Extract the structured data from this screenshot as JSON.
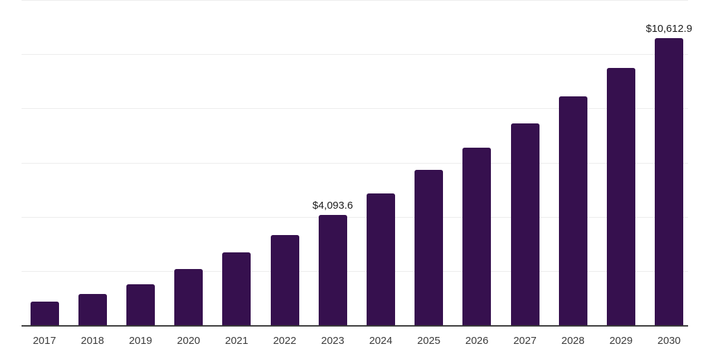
{
  "chart_data": {
    "type": "bar",
    "title": "",
    "xlabel": "",
    "ylabel": "",
    "categories": [
      "2017",
      "2018",
      "2019",
      "2020",
      "2021",
      "2022",
      "2023",
      "2024",
      "2025",
      "2026",
      "2027",
      "2028",
      "2029",
      "2030"
    ],
    "values": [
      890,
      1190,
      1540,
      2100,
      2700,
      3350,
      4093.6,
      4890,
      5760,
      6570,
      7470,
      8480,
      9510,
      10612.9
    ],
    "data_labels": {
      "2023": "$4,093.6",
      "2030": "$10,612.9"
    },
    "ylim": [
      0,
      12000
    ],
    "gridline_step": 2000,
    "grid": true,
    "legend": false,
    "bar_color": "#36104E",
    "gridline_color": "#ececec",
    "axis_line_color": "#3a3a3a",
    "tick_label_color": "#3a3a3a",
    "data_label_color": "#1a1a1a",
    "background": "#ffffff"
  }
}
